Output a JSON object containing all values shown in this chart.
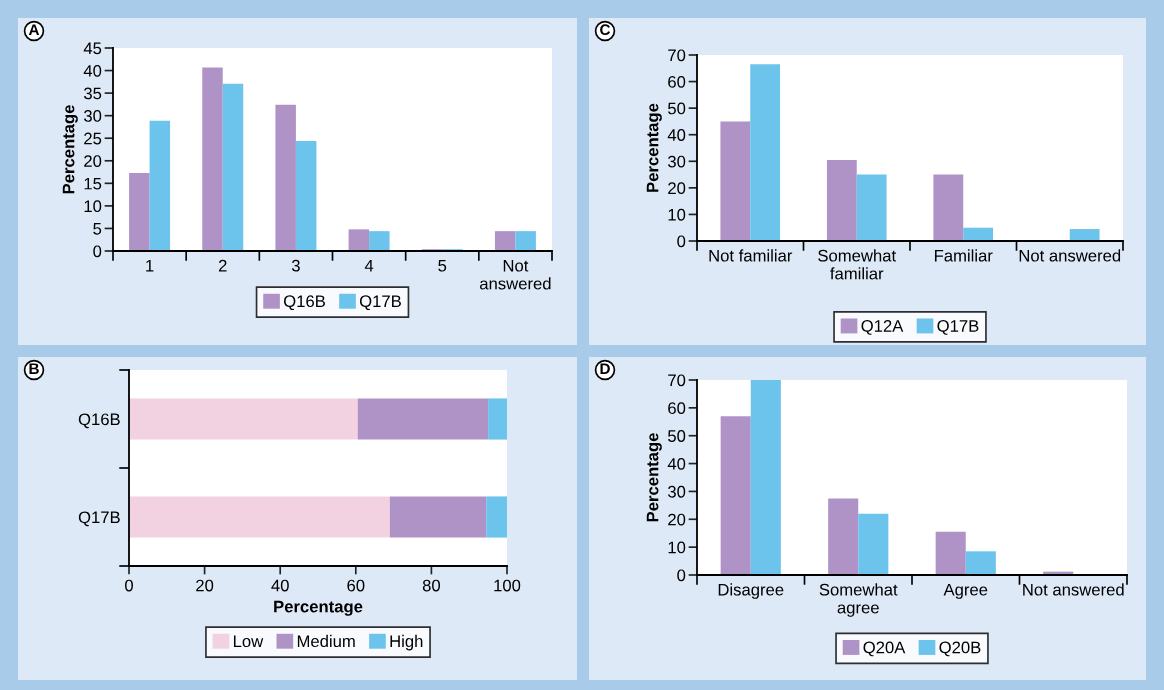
{
  "chart_data": [
    {
      "type": "bar",
      "title": "A",
      "ylabel": "Percentage",
      "categories": [
        "1",
        "2",
        "3",
        "4",
        "5",
        "Not\nanswered"
      ],
      "ylim": [
        0,
        45
      ],
      "yticks": [
        0,
        5,
        10,
        15,
        20,
        25,
        30,
        35,
        40,
        45
      ],
      "legend": "bottom",
      "grid": false,
      "series": [
        {
          "name": "Q16B",
          "color": "#b093c6",
          "values": [
            17.3,
            40.7,
            32.4,
            4.8,
            0.4,
            4.4
          ]
        },
        {
          "name": "Q17B",
          "color": "#6cc3ec",
          "values": [
            28.9,
            37.1,
            24.4,
            4.4,
            0.4,
            4.4
          ]
        }
      ]
    },
    {
      "type": "bar",
      "title": "C",
      "ylabel": "Percentage",
      "categories": [
        "Not familiar",
        "Somewhat\nfamiliar",
        "Familiar",
        "Not answered"
      ],
      "ylim": [
        0,
        70
      ],
      "yticks": [
        0,
        10,
        20,
        30,
        40,
        50,
        60,
        70
      ],
      "legend": "bottom",
      "grid": false,
      "series": [
        {
          "name": "Q12A",
          "color": "#b093c6",
          "values": [
            45,
            30.5,
            25,
            0
          ]
        },
        {
          "name": "Q17B",
          "color": "#6cc3ec",
          "values": [
            66.5,
            25,
            5,
            4.5
          ]
        }
      ]
    },
    {
      "type": "bar",
      "title": "B",
      "xlabel": "Percentage",
      "orientation": "horizontal",
      "stacked": true,
      "categories": [
        "Q16B",
        "Q17B"
      ],
      "xlim": [
        0,
        100
      ],
      "xticks": [
        0,
        20,
        40,
        60,
        80,
        100
      ],
      "legend": "bottom",
      "grid": false,
      "series": [
        {
          "name": "Low",
          "color": "#f2d1e0",
          "values": [
            60.5,
            69
          ]
        },
        {
          "name": "Medium",
          "color": "#b093c6",
          "values": [
            34.5,
            25.5
          ]
        },
        {
          "name": "High",
          "color": "#6cc3ec",
          "values": [
            5,
            5.5
          ]
        }
      ]
    },
    {
      "type": "bar",
      "title": "D",
      "ylabel": "Percentage",
      "categories": [
        "Disagree",
        "Somewhat\nagree",
        "Agree",
        "Not answered"
      ],
      "ylim": [
        0,
        70
      ],
      "yticks": [
        0,
        10,
        20,
        30,
        40,
        50,
        60,
        70
      ],
      "legend": "bottom",
      "grid": false,
      "series": [
        {
          "name": "Q20A",
          "color": "#b093c6",
          "values": [
            57,
            27.5,
            15.5,
            1.2
          ]
        },
        {
          "name": "Q20B",
          "color": "#6cc3ec",
          "values": [
            70,
            22,
            8.5,
            0
          ]
        }
      ]
    }
  ]
}
